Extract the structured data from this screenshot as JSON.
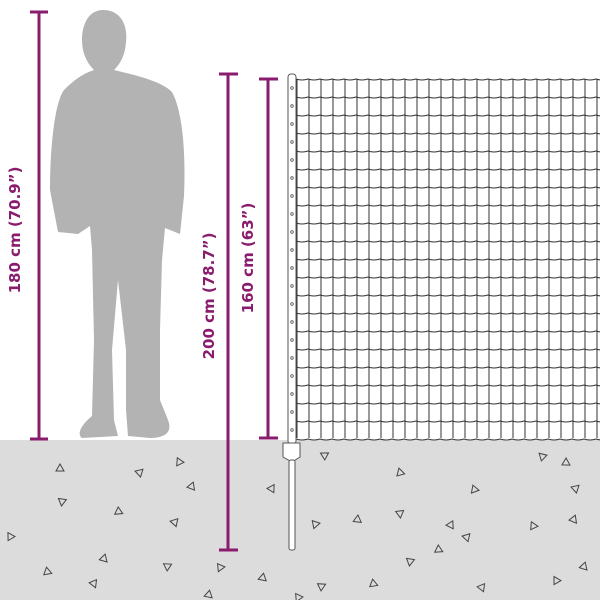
{
  "dimensions": {
    "person_height": "180 cm (70.9”)",
    "post_height": "200 cm (78.7”)",
    "fence_height": "160 cm (63”)"
  },
  "colors": {
    "dimension": "#8a1c6e",
    "ground": "#dcdcdc",
    "silhouette": "#b3b3b3",
    "mesh": "#333333"
  }
}
